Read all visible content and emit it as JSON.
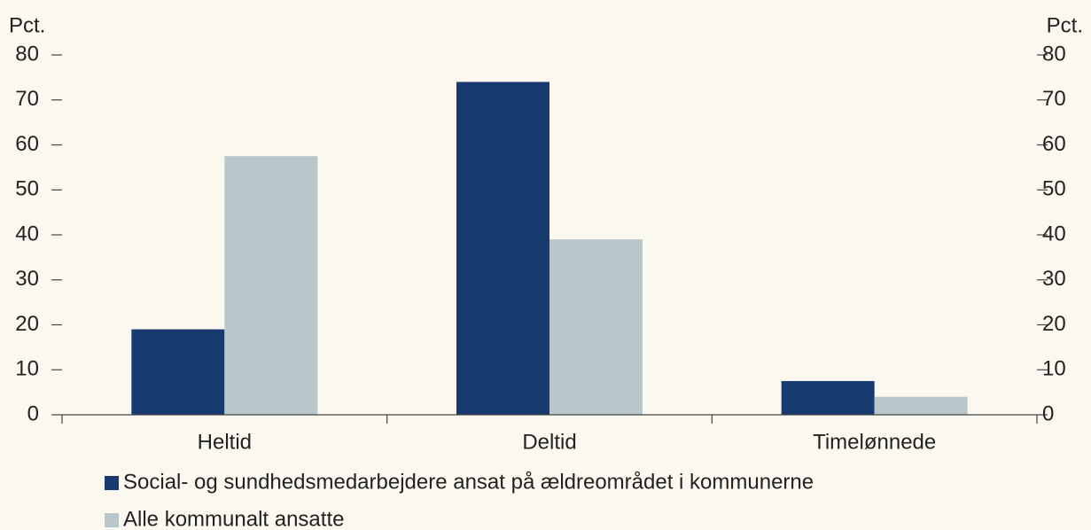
{
  "chart_data": {
    "type": "bar",
    "y_label": "Pct.",
    "y2_label": "Pct.",
    "categories": [
      "Heltid",
      "Deltid",
      "Timelønnede"
    ],
    "series": [
      {
        "name": "Social- og sundhedsmedarbejdere ansat på ældreområdet i kommunerne",
        "color": "#173a6f",
        "values": [
          19,
          74,
          7.5
        ]
      },
      {
        "name": "Alle kommunalt ansatte",
        "color": "#b9c6ca",
        "values": [
          57.5,
          39,
          4
        ]
      }
    ],
    "ylim": [
      0,
      80
    ],
    "yticks": [
      0,
      10,
      20,
      30,
      40,
      50,
      60,
      70,
      80
    ],
    "y2lim": [
      0,
      80
    ],
    "y2ticks": [
      0,
      10,
      20,
      30,
      40,
      50,
      60,
      70,
      80
    ],
    "grid": false
  }
}
